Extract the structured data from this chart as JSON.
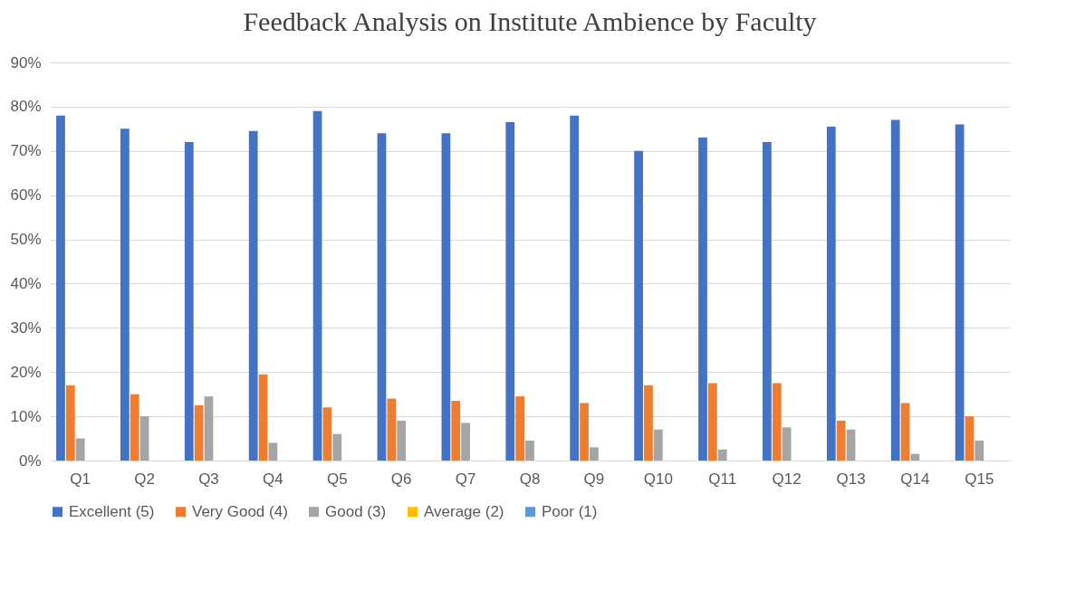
{
  "chart_data": {
    "type": "bar",
    "title": "Feedback Analysis on Institute Ambience by Faculty",
    "categories": [
      "Q1",
      "Q2",
      "Q3",
      "Q4",
      "Q5",
      "Q6",
      "Q7",
      "Q8",
      "Q9",
      "Q10",
      "Q11",
      "Q12",
      "Q13",
      "Q14",
      "Q15"
    ],
    "series": [
      {
        "name": "Excellent (5)",
        "color": "#4472c4",
        "values": [
          78,
          75,
          72,
          74.5,
          79,
          74,
          74,
          76.5,
          78,
          70,
          73,
          72,
          75.5,
          77,
          76
        ]
      },
      {
        "name": "Very Good (4)",
        "color": "#ed7d31",
        "values": [
          17,
          15,
          12.5,
          19.5,
          12,
          14,
          13.5,
          14.5,
          13,
          17,
          17.5,
          17.5,
          9,
          13,
          10
        ]
      },
      {
        "name": "Good (3)",
        "color": "#a5a5a5",
        "values": [
          5,
          10,
          14.5,
          4,
          6,
          9,
          8.5,
          4.5,
          3,
          7,
          2.5,
          7.5,
          7,
          1.5,
          4.5
        ]
      },
      {
        "name": "Average (2)",
        "color": "#ffc000",
        "values": [
          0,
          0,
          0,
          0,
          0,
          0,
          0,
          0,
          0,
          0,
          0,
          0,
          0,
          0,
          0
        ]
      },
      {
        "name": "Poor (1)",
        "color": "#5b9bd5",
        "values": [
          0,
          0,
          0,
          0,
          0,
          0,
          0,
          0,
          0,
          0,
          0,
          0,
          0,
          0,
          0
        ]
      }
    ],
    "ylim": [
      0,
      90
    ],
    "yticks": [
      {
        "value": 0,
        "label": "0%"
      },
      {
        "value": 10,
        "label": "10%"
      },
      {
        "value": 20,
        "label": "20%"
      },
      {
        "value": 30,
        "label": "30%"
      },
      {
        "value": 40,
        "label": "40%"
      },
      {
        "value": 50,
        "label": "50%"
      },
      {
        "value": 60,
        "label": "60%"
      },
      {
        "value": 70,
        "label": "70%"
      },
      {
        "value": 80,
        "label": "80%"
      },
      {
        "value": 90,
        "label": "90%"
      }
    ],
    "grid": "y",
    "legend": "bottom"
  }
}
